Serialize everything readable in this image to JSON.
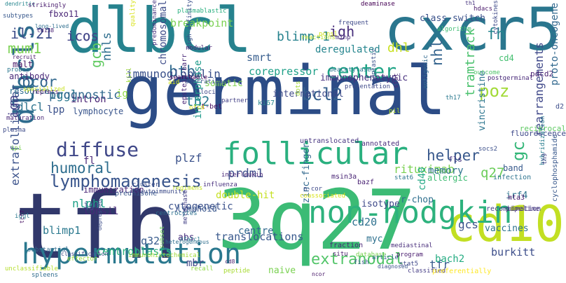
{
  "words": [
    {
      "text": "germinal",
      "color": "#2c4c86"
    },
    {
      "text": "dlbcl",
      "color": "#26828e"
    },
    {
      "text": "3q27",
      "color": "#3cbb75"
    },
    {
      "text": "tfh",
      "color": "#31386b"
    },
    {
      "text": "cxcr5",
      "color": "#2a768e"
    },
    {
      "text": "cd10",
      "color": "#c2df23"
    },
    {
      "text": "non-hodgkin",
      "color": "#2db27d"
    },
    {
      "text": "hypermutation",
      "color": "#2a788e"
    },
    {
      "text": "follicular",
      "color": "#2ab07f"
    },
    {
      "text": "dlbcls",
      "color": "#2f6c8e"
    },
    {
      "text": "center",
      "color": "#20a486"
    },
    {
      "text": "lymphomagenesis",
      "color": "#39558c"
    },
    {
      "text": "diffuse",
      "color": "#3f4788"
    },
    {
      "text": "bcl2",
      "color": "#35608d"
    },
    {
      "text": "poz",
      "color": "#a2da37"
    },
    {
      "text": "extranodal",
      "color": "#52c569"
    },
    {
      "text": "btb",
      "color": "#306a8e"
    },
    {
      "text": "helper",
      "color": "#38588c"
    },
    {
      "text": "humoral",
      "color": "#2e6e8e"
    },
    {
      "text": "gcb",
      "color": "#60ca60"
    },
    {
      "text": "mum1",
      "color": "#7ad151"
    },
    {
      "text": "bcor",
      "color": "#31688e"
    },
    {
      "text": "il-21",
      "color": "#3d4d8a"
    },
    {
      "text": "icos",
      "color": "#414487"
    },
    {
      "text": "breakpoint",
      "color": "#7ad151"
    },
    {
      "text": "blimp-1",
      "color": "#26828e"
    },
    {
      "text": "chromosomal",
      "color": "#3e4c8a"
    },
    {
      "text": "immunoglobulin",
      "color": "#3b518b"
    },
    {
      "text": "corepressor",
      "color": "#1fa088"
    },
    {
      "text": "nhl",
      "color": "#33638d"
    },
    {
      "text": "nhls",
      "color": "#2e6e8e"
    },
    {
      "text": "fh",
      "color": "#25848e"
    },
    {
      "text": "dhl",
      "color": "#c8e020"
    },
    {
      "text": "igh",
      "color": "#472d7b"
    },
    {
      "text": "smrt",
      "color": "#365d8d"
    },
    {
      "text": "deregulated",
      "color": "#25858e"
    },
    {
      "text": "class-switch",
      "color": "#3b528b"
    },
    {
      "text": "iga",
      "color": "#423f85"
    },
    {
      "text": "dlcl",
      "color": "#2c738e"
    },
    {
      "text": "iggl",
      "color": "#2a788e"
    },
    {
      "text": "lpp",
      "color": "#3b518b"
    },
    {
      "text": "intron",
      "color": "#482173"
    },
    {
      "text": "lymphocyte",
      "color": "#39558c"
    },
    {
      "text": "immunization",
      "color": "#482475"
    },
    {
      "text": "th2",
      "color": "#2a788e"
    },
    {
      "text": "international",
      "color": "#3e4a89"
    },
    {
      "text": "immunophenotypic",
      "color": "#46307e"
    },
    {
      "text": "tramtrack",
      "color": "#4ac16d"
    },
    {
      "text": "vincristine",
      "color": "#2b748e"
    },
    {
      "text": "gc",
      "color": "#35b779"
    },
    {
      "text": "q27",
      "color": "#6ccd5a"
    },
    {
      "text": "plzf",
      "color": "#3b528b"
    },
    {
      "text": "prdm1",
      "color": "#3d4d8a"
    },
    {
      "text": "interphase",
      "color": "#1f9a8a"
    },
    {
      "text": "rituximab",
      "color": "#7ad151"
    },
    {
      "text": "memory",
      "color": "#2c728e"
    },
    {
      "text": "rearrangements",
      "color": "#3f4889"
    },
    {
      "text": "extrafollicular",
      "color": "#3b528b"
    },
    {
      "text": "blimp1",
      "color": "#2a788e"
    },
    {
      "text": "nlphl",
      "color": "#1fa188"
    },
    {
      "text": "tonsil",
      "color": "#482878"
    },
    {
      "text": "cytogenetic",
      "color": "#3b518b"
    },
    {
      "text": "double-hit",
      "color": "#c5e021"
    },
    {
      "text": "cd20",
      "color": "#2d708e"
    },
    {
      "text": "isotype",
      "color": "#3e4989"
    },
    {
      "text": "centre",
      "color": "#31688e"
    },
    {
      "text": "translocations",
      "color": "#38588c"
    },
    {
      "text": "centroblasts",
      "color": "#2db27d"
    },
    {
      "text": "burkitt",
      "color": "#3d4e8a"
    },
    {
      "text": "gcs",
      "color": "#3b528b"
    },
    {
      "text": "vaccines",
      "color": "#2c728e"
    },
    {
      "text": "cd40",
      "color": "#22a884"
    },
    {
      "text": "ige",
      "color": "#3e4a89"
    },
    {
      "text": "q32",
      "color": "#375a8c"
    },
    {
      "text": "myc",
      "color": "#2d708e"
    },
    {
      "text": "mbr",
      "color": "#3f4788"
    },
    {
      "text": "abs",
      "color": "#472f7d"
    },
    {
      "text": "tfr",
      "color": "#375a8c"
    },
    {
      "text": "naive",
      "color": "#7ad151"
    },
    {
      "text": "bach2",
      "color": "#25ac82"
    },
    {
      "text": "irf4",
      "color": "#2c738e"
    },
    {
      "text": "r-chop",
      "color": "#2e6f8e"
    },
    {
      "text": "zinc-finger",
      "color": "#31688e"
    },
    {
      "text": "lymphoid",
      "color": "#39558c"
    },
    {
      "text": "fl",
      "color": "#482677"
    },
    {
      "text": "ig",
      "color": "#8fd744"
    },
    {
      "text": "somatic",
      "color": "#7fd34e"
    },
    {
      "text": "antibody",
      "color": "#482878"
    },
    {
      "text": "resource",
      "color": "#2e6e8e"
    },
    {
      "text": "malt",
      "color": "#471365"
    },
    {
      "text": "allergic",
      "color": "#3fbc73"
    },
    {
      "text": "band",
      "color": "#375a8c"
    },
    {
      "text": "fls",
      "color": "#453581"
    },
    {
      "text": "fluorescence",
      "color": "#3e4989"
    },
    {
      "text": "cd4",
      "color": "#44bf70"
    },
    {
      "text": "d2",
      "color": "#3d4e8a"
    },
    {
      "text": "pdcd2",
      "color": "#481f70"
    },
    {
      "text": "proto-oncogene",
      "color": "#31688e"
    },
    {
      "text": "fbxo11",
      "color": "#482575"
    },
    {
      "text": "icos",
      "color": "#414487"
    },
    {
      "text": "dendritic",
      "color": "#25858e"
    },
    {
      "text": "hdacs",
      "color": "#481769"
    },
    {
      "text": "th1",
      "color": "#46327e"
    },
    {
      "text": "deaminase",
      "color": "#440154"
    },
    {
      "text": "plasmablastic",
      "color": "#29af7f"
    },
    {
      "text": "predominance",
      "color": "#45337f"
    },
    {
      "text": "quality",
      "color": "#d8e219"
    },
    {
      "text": "high-affinity",
      "color": "#3b518b"
    },
    {
      "text": "th17",
      "color": "#2a788e"
    },
    {
      "text": "epstein-barr",
      "color": "#482677"
    },
    {
      "text": "t-bet",
      "color": "#471063"
    },
    {
      "text": "ki67",
      "color": "#25858e"
    },
    {
      "text": "interleukin",
      "color": "#482576"
    },
    {
      "text": "untranslocated",
      "color": "#463480"
    },
    {
      "text": "annotated",
      "color": "#472a7a"
    },
    {
      "text": "reciprocal",
      "color": "#5ec962"
    },
    {
      "text": "autoimmunity",
      "color": "#3e4c8a"
    },
    {
      "text": "cluster",
      "color": "#3d4e8a"
    },
    {
      "text": "prednisone",
      "color": "#39568c"
    },
    {
      "text": "regimens",
      "color": "#c2df23"
    },
    {
      "text": "influenza",
      "color": "#472f7d"
    },
    {
      "text": "msin3a",
      "color": "#482374"
    },
    {
      "text": "bazf",
      "color": "#482173"
    },
    {
      "text": "stat6",
      "color": "#2b748e"
    },
    {
      "text": "socs2",
      "color": "#3c508b"
    },
    {
      "text": "mta3",
      "color": "#481a6c"
    },
    {
      "text": "recombination",
      "color": "#423f85"
    },
    {
      "text": "pipeline",
      "color": "#46327e"
    },
    {
      "text": "infection",
      "color": "#2c738e"
    },
    {
      "text": "hybridization",
      "color": "#287c8e"
    },
    {
      "text": "cyclophosphamide",
      "color": "#38588c"
    },
    {
      "text": "metaphase",
      "color": "#423f85"
    },
    {
      "text": "nfatc1",
      "color": "#2a788e"
    },
    {
      "text": "fraction",
      "color": "#482677"
    },
    {
      "text": "situ",
      "color": "#481b6d"
    },
    {
      "text": "database",
      "color": "#7ad151"
    },
    {
      "text": "fish",
      "color": "#38588c"
    },
    {
      "text": "article",
      "color": "#31688e"
    },
    {
      "text": "mediastinal",
      "color": "#472c7a"
    },
    {
      "text": "stat5",
      "color": "#3f4889"
    },
    {
      "text": "program",
      "color": "#481b6d"
    },
    {
      "text": "classified",
      "color": "#443b84"
    },
    {
      "text": "preferentially",
      "color": "#fde725"
    },
    {
      "text": "unclassifiable",
      "color": "#b5de2b"
    },
    {
      "text": "spleens",
      "color": "#2f6c8e"
    },
    {
      "text": "substantial",
      "color": "#31688e"
    },
    {
      "text": "classification",
      "color": "#3e4a89"
    },
    {
      "text": "immunohistochemical",
      "color": "#a0da39"
    },
    {
      "text": "subset",
      "color": "#6ccd5a"
    },
    {
      "text": "peptide",
      "color": "#a8db34"
    },
    {
      "text": "recall",
      "color": "#8fd744"
    },
    {
      "text": "cd8",
      "color": "#481c6e"
    },
    {
      "text": "effector",
      "color": "#9dd93b"
    },
    {
      "text": "depressed",
      "color": "#3d4d8a"
    },
    {
      "text": "centrocytes",
      "color": "#2d708e"
    },
    {
      "text": "long-lived",
      "color": "#2e6e8e"
    },
    {
      "text": "cd138",
      "color": "#482374"
    },
    {
      "text": "subtypes",
      "color": "#38588c"
    },
    {
      "text": "strikingly",
      "color": "#481b6d"
    },
    {
      "text": "recruit",
      "color": "#48186a"
    },
    {
      "text": "specialized",
      "color": "#c8e020"
    },
    {
      "text": "repress",
      "color": "#481b6d"
    },
    {
      "text": "maturation",
      "color": "#482878"
    },
    {
      "text": "plasma",
      "color": "#3e4c8a"
    },
    {
      "text": "ipi",
      "color": "#7ad151"
    },
    {
      "text": "probes",
      "color": "#2a768e"
    },
    {
      "text": "searchable",
      "color": "#440154"
    },
    {
      "text": "aberrations",
      "color": "#3b528b"
    },
    {
      "text": "reactions",
      "color": "#b8de29"
    },
    {
      "text": "pcnsl",
      "color": "#d2e21b"
    },
    {
      "text": "deacetylases",
      "color": "#2a788e"
    },
    {
      "text": "neoplastic",
      "color": "#3b528b"
    },
    {
      "text": "antigenic",
      "color": "#31688e"
    },
    {
      "text": "postgerminal",
      "color": "#482979"
    },
    {
      "text": "outcome",
      "color": "#50c46a"
    },
    {
      "text": "minp",
      "color": "#472f7d"
    },
    {
      "text": "frequent",
      "color": "#3e4a89"
    },
    {
      "text": "presentation",
      "color": "#3e4989"
    },
    {
      "text": "partner",
      "color": "#424086"
    },
    {
      "text": "ofcd",
      "color": "#e2e418"
    },
    {
      "text": "kill",
      "color": "#9dd93b"
    },
    {
      "text": "nodular",
      "color": "#482475"
    },
    {
      "text": "aid",
      "color": "#d2e21b"
    },
    {
      "text": "loci",
      "color": "#3e4a89"
    },
    {
      "text": "pil",
      "color": "#b5de2b"
    },
    {
      "text": "stat",
      "color": "#482878"
    },
    {
      "text": "diagnosed",
      "color": "#3b528b"
    },
    {
      "text": "ncor",
      "color": "#481769"
    },
    {
      "text": "n-cor",
      "color": "#3e4989"
    },
    {
      "text": "coassociated",
      "color": "#d8e219"
    },
    {
      "text": "prognostic",
      "color": "#31688e"
    },
    {
      "text": "iggl",
      "color": "#2a788e"
    },
    {
      "text": "th9",
      "color": "#424086"
    },
    {
      "text": "heterogeneous",
      "color": "#2e6e8e"
    },
    {
      "text": "tcf7",
      "color": "#471063"
    },
    {
      "text": "cytokines",
      "color": "#3e4a89"
    },
    {
      "text": "algorithm",
      "color": "#3fbc73"
    },
    {
      "text": "dots",
      "color": "#a5db36"
    },
    {
      "text": "ri-mpi",
      "color": "#3b528b"
    }
  ]
}
